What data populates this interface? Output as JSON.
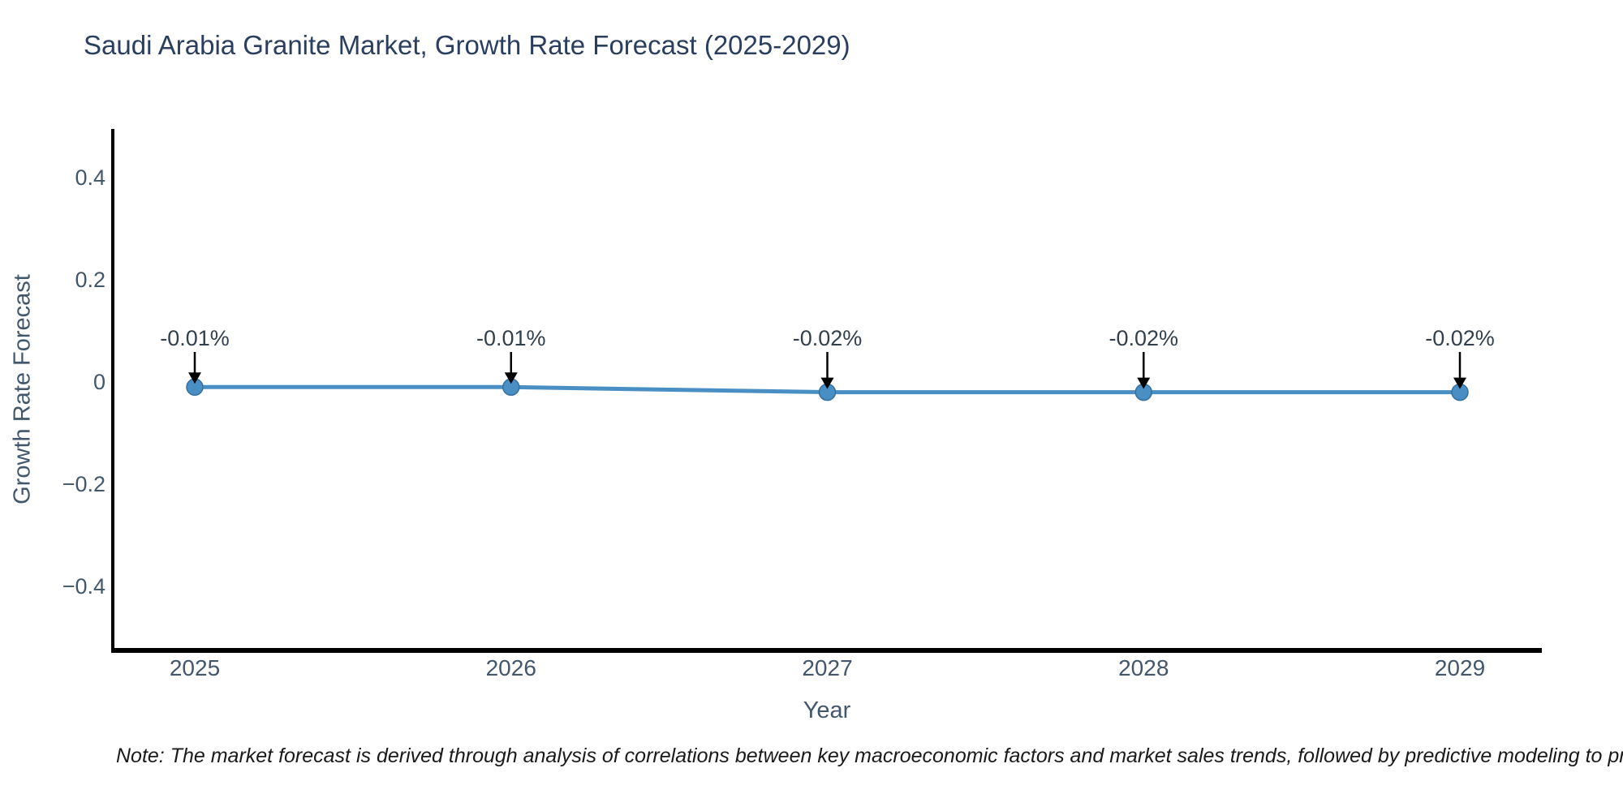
{
  "title": "Saudi Arabia Granite Market, Growth Rate Forecast (2025-2029)",
  "note": "Note: The market forecast is derived through analysis of correlations between key macroeconomic factors and market sales trends, followed by predictive modeling to project future sales",
  "chart_data": {
    "type": "line",
    "categories": [
      "2025",
      "2026",
      "2027",
      "2028",
      "2029"
    ],
    "values": [
      -0.01,
      -0.01,
      -0.02,
      -0.02,
      -0.02
    ],
    "point_labels": [
      "-0.01%",
      "-0.01%",
      "-0.02%",
      "-0.02%",
      "-0.02%"
    ],
    "title": "Saudi Arabia Granite Market, Growth Rate Forecast (2025-2029)",
    "xlabel": "Year",
    "ylabel": "Growth Rate Forecast",
    "yticks": [
      0.4,
      0.2,
      0,
      -0.2,
      -0.4
    ],
    "ytick_labels": [
      "0.4",
      "0.2",
      "0",
      "−0.2",
      "−0.4"
    ],
    "ylim": [
      -0.52,
      0.49
    ],
    "grid": false,
    "legend": null,
    "annotations_have_arrows": true
  },
  "colors": {
    "line": "#4a8fc4",
    "marker": "#4a8fc4",
    "marker_edge": "#35709e",
    "arrow": "#000000",
    "title_text": "#2a3f5f",
    "tick_text": "#42576b",
    "note_text": "#1a1a1a",
    "axis": "#000000",
    "background": "#ffffff"
  }
}
